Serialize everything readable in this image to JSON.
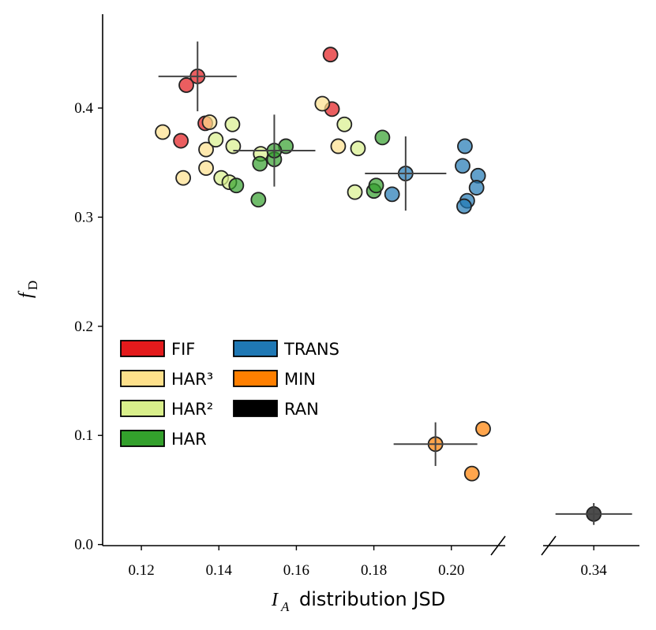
{
  "chart_data": {
    "type": "scatter",
    "xlabel": {
      "symbol": "I",
      "subscript": "A",
      "text": "distribution JSD"
    },
    "ylabel": {
      "symbol": "f",
      "subscript": "D"
    },
    "xlim": [
      0.11,
      0.2139
    ],
    "xticks": [
      0.12,
      0.14,
      0.16,
      0.18,
      {
        "value": 0.2,
        "label": "0.20"
      }
    ],
    "x2lim": [
      0.3269,
      0.3518
    ],
    "x2ticks": [
      0.34
    ],
    "ylim": [
      -0.001,
      0.486
    ],
    "yticks": [
      {
        "value": 0,
        "label": "0.0"
      },
      0.1,
      0.2,
      0.3,
      0.4
    ],
    "legend": "lower left",
    "series": [
      {
        "name": "FIF",
        "color": "#e31a1c",
        "x": [
          0.1316,
          0.1302,
          0.1365,
          0.1688,
          0.1692
        ],
        "y": [
          0.421,
          0.37,
          0.386,
          0.449,
          0.399
        ],
        "mean": {
          "x": 0.1345,
          "y": 0.429,
          "xerr": 0.0101,
          "yerr": 0.032
        }
      },
      {
        "name": "HAR³",
        "color": "#fee08b",
        "x": [
          0.1255,
          0.1308,
          0.1367,
          0.1367,
          0.1376,
          0.1667,
          0.1708
        ],
        "y": [
          0.378,
          0.336,
          0.362,
          0.345,
          0.387,
          0.404,
          0.365
        ]
      },
      {
        "name": "HAR²",
        "color": "#d9ef8b",
        "x": [
          0.1392,
          0.1435,
          0.1406,
          0.1427,
          0.1437,
          0.1508,
          0.1724,
          0.1759,
          0.1751
        ],
        "y": [
          0.371,
          0.385,
          0.336,
          0.332,
          0.365,
          0.358,
          0.385,
          0.363,
          0.323
        ]
      },
      {
        "name": "HAR",
        "color": "#33a02c",
        "x": [
          0.1445,
          0.1502,
          0.1506,
          0.1543,
          0.1573,
          0.18,
          0.1806,
          0.1822
        ],
        "y": [
          0.329,
          0.316,
          0.349,
          0.353,
          0.365,
          0.324,
          0.329,
          0.373
        ],
        "mean": {
          "x": 0.1543,
          "y": 0.361,
          "xerr": 0.0106,
          "yerr": 0.033
        }
      },
      {
        "name": "TRANS",
        "color": "#1f78b4",
        "x": [
          0.1847,
          0.2035,
          0.2029,
          0.2069,
          0.2065,
          0.2041,
          0.2033
        ],
        "y": [
          0.321,
          0.365,
          0.347,
          0.338,
          0.327,
          0.315,
          0.31
        ],
        "mean": {
          "x": 0.1882,
          "y": 0.34,
          "xerr": 0.0105,
          "yerr": 0.034
        }
      },
      {
        "name": "MIN",
        "color": "#ff7f00",
        "x": [
          0.2082,
          0.2053
        ],
        "y": [
          0.106,
          0.065
        ],
        "mean": {
          "x": 0.1959,
          "y": 0.092,
          "xerr": 0.0108,
          "yerr": 0.02
        }
      },
      {
        "name": "RAN",
        "color": "#000000",
        "x": [],
        "y": [],
        "mean": {
          "x": 0.34,
          "y": 0.028,
          "xerr": 0.0099,
          "yerr": 0.01
        }
      }
    ]
  }
}
